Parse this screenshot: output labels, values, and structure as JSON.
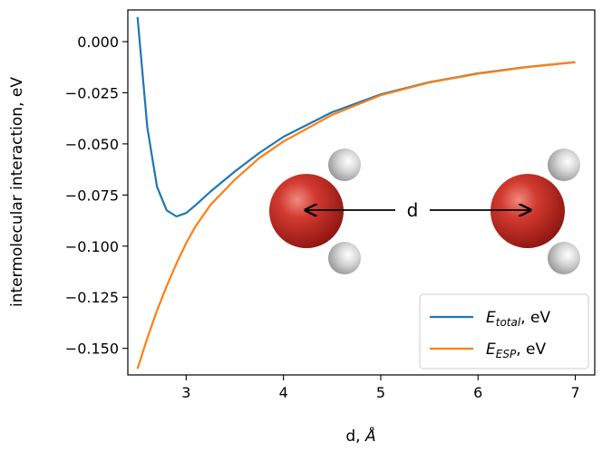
{
  "chart_data": {
    "type": "line",
    "xlabel_main": "d, ",
    "xlabel_unit": "Å",
    "ylabel": "intermolecular interaction, eV",
    "xlim": [
      2.4,
      7.2
    ],
    "ylim": [
      -0.163,
      0.0155
    ],
    "xticks": [
      3,
      4,
      5,
      6,
      7
    ],
    "xtick_labels": [
      "3",
      "4",
      "5",
      "6",
      "7"
    ],
    "yticks": [
      0.0,
      -0.025,
      -0.05,
      -0.075,
      -0.1,
      -0.125,
      -0.15
    ],
    "ytick_labels": [
      "0.000",
      "−0.025",
      "−0.050",
      "−0.075",
      "−0.100",
      "−0.125",
      "−0.150"
    ],
    "legend_position": "lower-right",
    "series": [
      {
        "name_main": "E",
        "name_sub": "total",
        "name_suffix": ", eV",
        "color": "#1f77b4",
        "x": [
          2.5,
          2.6,
          2.7,
          2.8,
          2.9,
          3.0,
          3.1,
          3.25,
          3.5,
          3.75,
          4.0,
          4.5,
          5.0,
          5.5,
          6.0,
          6.5,
          7.0
        ],
        "y": [
          0.012,
          -0.042,
          -0.071,
          -0.0825,
          -0.0855,
          -0.0838,
          -0.0798,
          -0.0733,
          -0.0635,
          -0.0545,
          -0.0465,
          -0.0345,
          -0.0258,
          -0.0198,
          -0.0155,
          -0.0124,
          -0.01
        ]
      },
      {
        "name_main": "E",
        "name_sub": "ESP",
        "name_suffix": ", eV",
        "color": "#ff7f0e",
        "x": [
          2.5,
          2.6,
          2.7,
          2.8,
          2.9,
          3.0,
          3.1,
          3.25,
          3.5,
          3.75,
          4.0,
          4.5,
          5.0,
          5.5,
          6.0,
          6.5,
          7.0
        ],
        "y": [
          -0.16,
          -0.145,
          -0.1315,
          -0.1195,
          -0.1085,
          -0.0985,
          -0.09,
          -0.0798,
          -0.0675,
          -0.057,
          -0.0488,
          -0.0358,
          -0.0262,
          -0.02,
          -0.0157,
          -0.0125,
          -0.01
        ]
      }
    ],
    "inset": {
      "label": "d",
      "atoms": [
        {
          "element": "O",
          "color": "#c62828"
        },
        {
          "element": "H",
          "color": "#cccccc"
        },
        {
          "element": "H",
          "color": "#cccccc"
        },
        {
          "element": "O",
          "color": "#c62828"
        },
        {
          "element": "H",
          "color": "#cccccc"
        },
        {
          "element": "H",
          "color": "#cccccc"
        }
      ]
    }
  }
}
